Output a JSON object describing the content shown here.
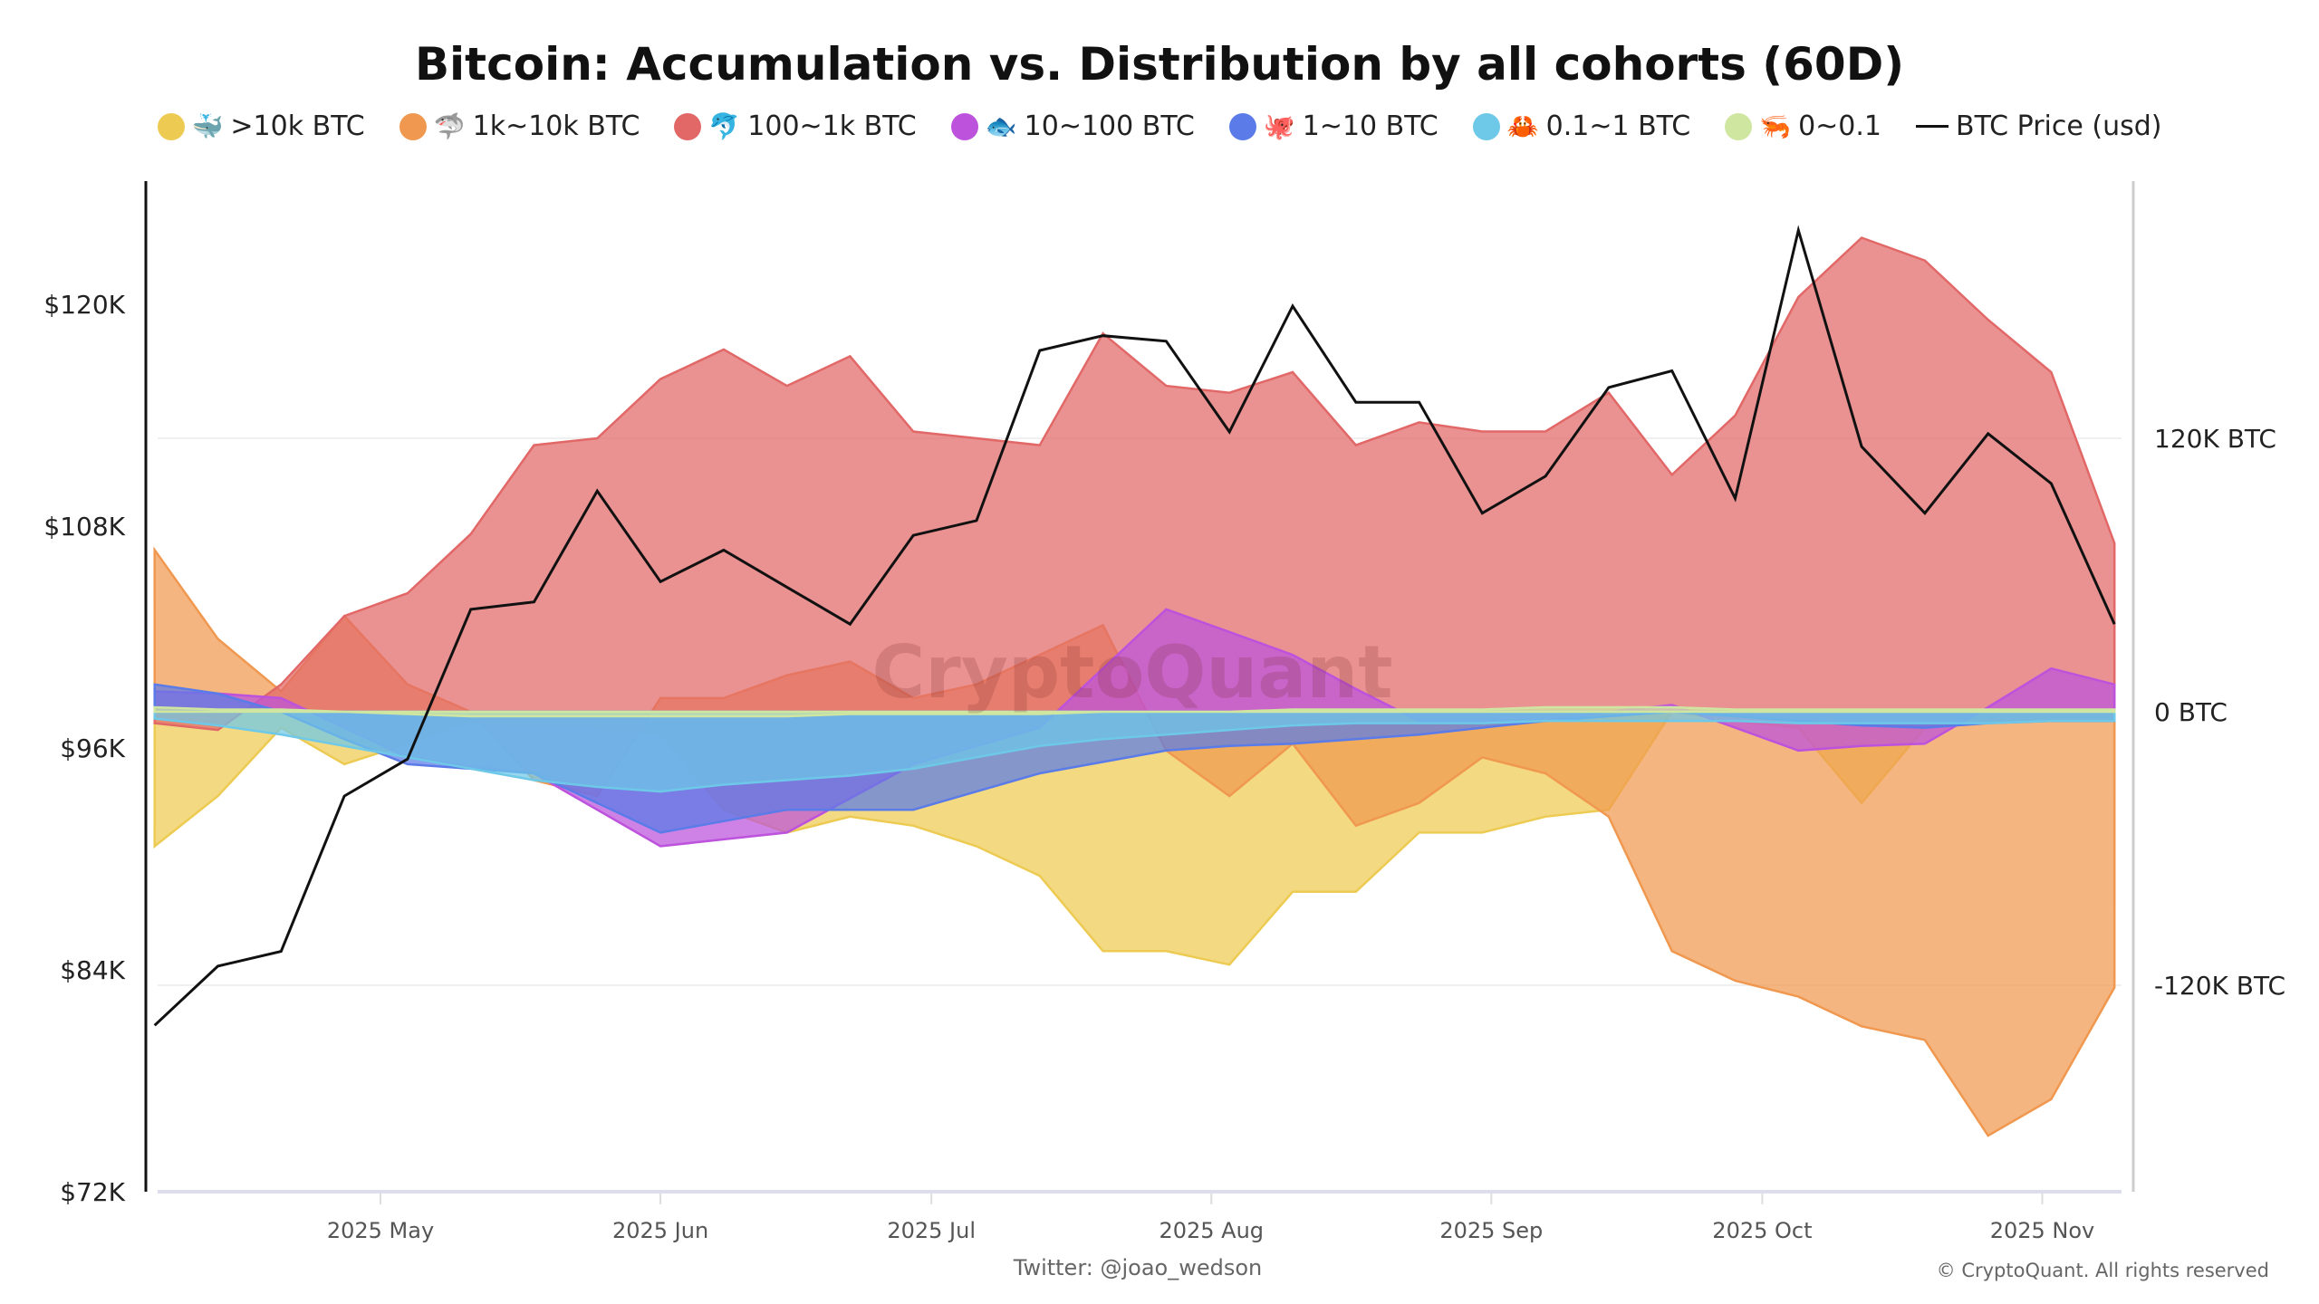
{
  "chart_data": {
    "type": "area",
    "title": "Bitcoin: Accumulation vs. Distribution by all cohorts (60D)",
    "x": [
      "2025-04-06",
      "2025-04-13",
      "2025-04-20",
      "2025-04-27",
      "2025-05-04",
      "2025-05-11",
      "2025-05-18",
      "2025-05-25",
      "2025-06-01",
      "2025-06-08",
      "2025-06-15",
      "2025-06-22",
      "2025-06-29",
      "2025-07-06",
      "2025-07-13",
      "2025-07-20",
      "2025-07-27",
      "2025-08-03",
      "2025-08-10",
      "2025-08-17",
      "2025-08-24",
      "2025-08-31",
      "2025-09-07",
      "2025-09-14",
      "2025-09-21",
      "2025-09-28",
      "2025-10-05",
      "2025-10-12",
      "2025-10-19",
      "2025-10-26",
      "2025-11-02",
      "2025-11-09"
    ],
    "x_ticks": [
      "2025 May",
      "2025 Jun",
      "2025 Jul",
      "2025 Aug",
      "2025 Sep",
      "2025 Oct",
      "2025 Nov"
    ],
    "x_tick_dates": [
      "2025-05-01",
      "2025-06-01",
      "2025-07-01",
      "2025-08-01",
      "2025-09-01",
      "2025-10-01",
      "2025-11-01"
    ],
    "y_left": {
      "ticks": [
        "$72K",
        "$84K",
        "$96K",
        "$108K",
        "$120K"
      ],
      "tick_values": [
        72,
        84,
        96,
        108,
        120
      ],
      "range": [
        72,
        126
      ],
      "unit": "USD thousands"
    },
    "y_right": {
      "ticks": [
        "120K BTC",
        "0 BTC",
        "-120K BTC"
      ],
      "tick_values": [
        120,
        0,
        -120
      ],
      "unit": "BTC thousands"
    },
    "legend_position": "top",
    "series": [
      {
        "name": "1k~10k BTC",
        "icon": "shark-icon",
        "color": "#f0984f",
        "values": [
          71,
          32,
          9,
          42,
          12,
          0,
          -30,
          -37,
          6,
          6,
          16,
          22,
          6,
          12,
          25,
          38,
          -17,
          -37,
          -14,
          -50,
          -40,
          -20,
          -27,
          -46,
          -105,
          -118,
          -125,
          -138,
          -144,
          -186,
          -170,
          -121
        ]
      },
      {
        "name": ">10k BTC",
        "icon": "whale-icon",
        "color": "#edcb52",
        "values": [
          -59,
          -37,
          -7,
          -23,
          -14,
          -4,
          -7,
          -7,
          -10,
          -43,
          -53,
          -46,
          -50,
          -59,
          -72,
          -105,
          -105,
          -111,
          -79,
          -79,
          -53,
          -53,
          -46,
          -43,
          0,
          -4,
          -7,
          -40,
          -7,
          -4,
          -4,
          -4
        ]
      },
      {
        "name": "100~1k BTC",
        "icon": "dolphin-icon",
        "color": "#e26868",
        "values": [
          -5,
          -8,
          12,
          42,
          52,
          78,
          117,
          120,
          146,
          159,
          143,
          156,
          123,
          120,
          117,
          166,
          143,
          140,
          149,
          117,
          127,
          123,
          123,
          140,
          104,
          130,
          182,
          208,
          198,
          172,
          149,
          74
        ]
      },
      {
        "name": "10~100 BTC",
        "icon": "fish-icon",
        "color": "#bd52dd",
        "values": [
          9,
          8,
          6,
          -7,
          -20,
          -24,
          -27,
          -43,
          -59,
          -56,
          -53,
          -38,
          -23,
          -15,
          -7,
          19,
          45,
          35,
          25,
          10,
          -4,
          -4,
          -4,
          0,
          3,
          -7,
          -17,
          -15,
          -14,
          2,
          19,
          12
        ]
      },
      {
        "name": "1~10 BTC",
        "icon": "octopus-icon",
        "color": "#5a7be8",
        "values": [
          12,
          8,
          0,
          -12,
          -23,
          -25,
          -27,
          -40,
          -53,
          -48,
          -43,
          -43,
          -43,
          -35,
          -27,
          -22,
          -17,
          -15,
          -14,
          -12,
          -10,
          -7,
          -4,
          -2,
          0,
          -2,
          -4,
          -6,
          -7,
          -5,
          -4,
          -4
        ]
      },
      {
        "name": "0.1~1 BTC",
        "icon": "crab-icon",
        "color": "#6ec8e8",
        "values": [
          -3,
          -6,
          -10,
          -15,
          -20,
          -25,
          -30,
          -33,
          -35,
          -32,
          -30,
          -28,
          -25,
          -20,
          -15,
          -12,
          -10,
          -8,
          -6,
          -5,
          -5,
          -5,
          -4,
          -4,
          -4,
          -4,
          -5,
          -5,
          -5,
          -5,
          -4,
          -4
        ]
      },
      {
        "name": "0~0.1",
        "icon": "shrimp-icon",
        "color": "#cfe6a0",
        "values": [
          2,
          1,
          1,
          0,
          -1,
          -2,
          -2,
          -2,
          -2,
          -2,
          -2,
          -1,
          -1,
          -1,
          -1,
          0,
          0,
          0,
          1,
          1,
          1,
          1,
          2,
          2,
          2,
          1,
          1,
          1,
          1,
          1,
          1,
          1
        ]
      }
    ],
    "price": {
      "name": "BTC Price (usd)",
      "color": "#111111",
      "values": [
        81,
        84.2,
        85,
        93.4,
        95.4,
        103.5,
        103.9,
        109.9,
        105,
        106.7,
        104.7,
        102.7,
        107.5,
        108.3,
        117.5,
        118.3,
        118,
        113.1,
        119.9,
        114.7,
        114.7,
        108.7,
        110.7,
        115.5,
        116.4,
        109.5,
        124,
        112.3,
        108.7,
        113,
        110.3,
        102.7
      ]
    }
  },
  "footer": {
    "credit": "Twitter: @joao_wedson",
    "copyright": "© CryptoQuant. All rights reserved"
  },
  "watermark": "CryptoQuant"
}
